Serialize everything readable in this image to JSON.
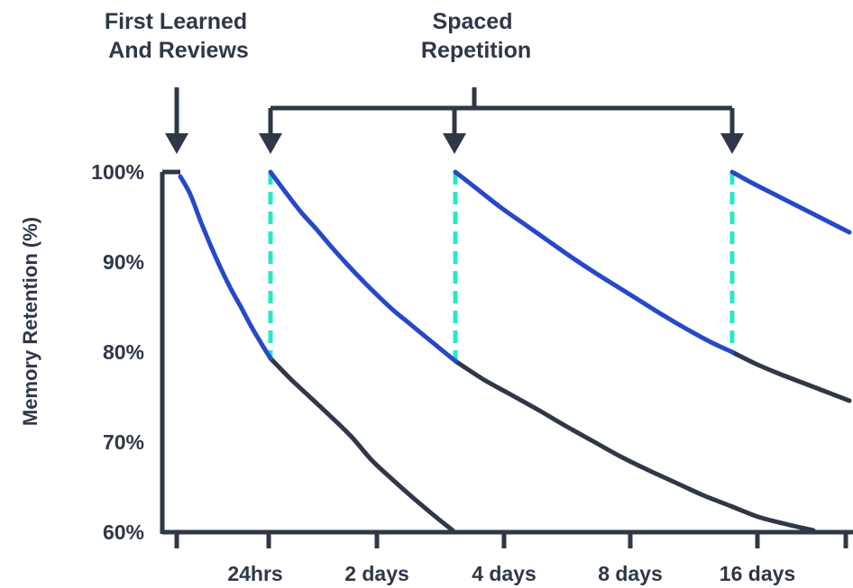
{
  "chart_data": {
    "type": "line",
    "title": "",
    "xlabel": "",
    "ylabel": "Memory Retention (%)",
    "ylim": [
      60,
      100
    ],
    "y_ticks": [
      "100%",
      "90%",
      "80%",
      "70%",
      "60%"
    ],
    "x_tick_labels": [
      "24hrs",
      "2 days",
      "4 days",
      "8 days",
      "16 days"
    ],
    "annotations": {
      "first_learned": [
        "First Learned",
        "And Reviews"
      ],
      "spaced_repetition": [
        "Spaced",
        "Repetition"
      ]
    },
    "colors": {
      "axis": "#2f3748",
      "before_review": "#2748c9",
      "forgetting": "#2f3748",
      "review_marker": "#29e8c6"
    },
    "series": [
      {
        "review": 0,
        "retention": [
          99.5,
          97.5,
          94.6,
          91.9,
          89.4,
          87.1,
          85.1,
          83.0,
          81.1,
          79.3
        ],
        "fade": [
          79.3,
          77.0,
          74.9,
          72.8,
          70.6,
          68.0,
          65.9,
          63.9,
          62.0,
          60.2
        ]
      },
      {
        "review": 1,
        "retention": [
          100.0,
          97.7,
          95.5,
          93.6,
          91.6,
          89.7,
          87.9,
          86.2,
          84.6,
          83.2,
          81.8,
          80.4,
          79.0
        ],
        "fade": [
          79.0,
          77.0,
          75.3,
          73.6,
          71.8,
          70.1,
          68.4,
          66.9,
          65.5,
          64.1,
          62.9,
          61.7,
          60.9,
          60.2
        ]
      },
      {
        "review": 2,
        "retention": [
          100.0,
          98.0,
          96.0,
          94.2,
          92.4,
          90.6,
          88.9,
          87.3,
          85.7,
          84.1,
          82.6,
          81.2,
          80.0
        ],
        "fade": [
          80.0,
          78.7,
          77.6,
          76.6,
          75.6,
          74.6
        ]
      },
      {
        "review": 3,
        "retention": [
          100.0,
          98.8,
          97.7,
          96.6,
          95.5,
          94.4,
          93.3
        ]
      }
    ]
  }
}
